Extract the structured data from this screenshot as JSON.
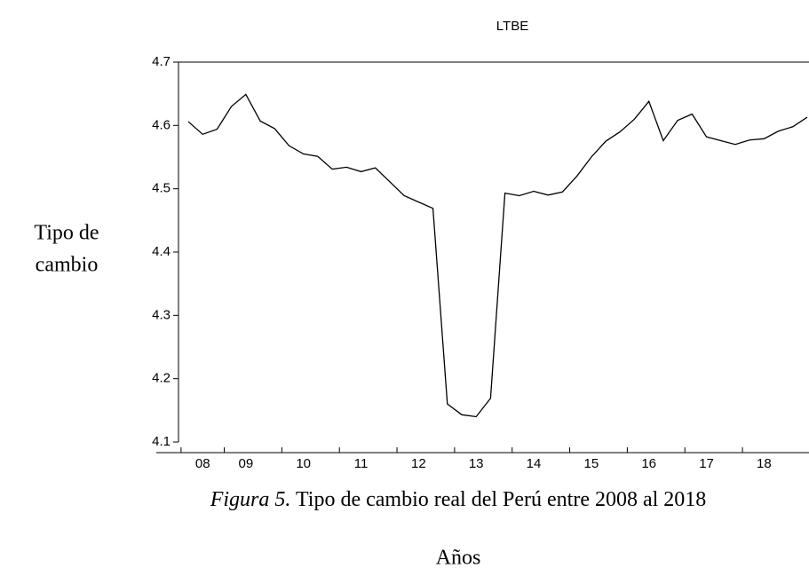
{
  "chart_data": {
    "type": "line",
    "title": "LTBE",
    "y_label": [
      "Tipo de",
      "cambio"
    ],
    "x_label": "Años",
    "caption_label": "Figura 5.",
    "caption_text": "Tipo de cambio real del Perú entre 2008 al 2018",
    "categories": [
      null,
      "08",
      null,
      null,
      "09",
      null,
      null,
      null,
      "10",
      null,
      null,
      null,
      "11",
      null,
      null,
      null,
      "12",
      null,
      null,
      null,
      "13",
      null,
      null,
      null,
      "14",
      null,
      null,
      null,
      "15",
      null,
      null,
      null,
      "16",
      null,
      null,
      null,
      "17",
      null,
      null,
      null,
      "18",
      null,
      null,
      null
    ],
    "series": [
      {
        "name": "LTBE",
        "color": "#000000",
        "values": [
          4.606,
          4.586,
          4.594,
          4.63,
          4.649,
          4.607,
          4.595,
          4.568,
          4.555,
          4.551,
          4.531,
          4.534,
          4.527,
          4.533,
          4.511,
          4.489,
          4.479,
          4.469,
          4.16,
          4.143,
          4.14,
          4.169,
          4.493,
          4.489,
          4.496,
          4.49,
          4.495,
          4.52,
          4.55,
          4.575,
          4.59,
          4.61,
          4.638,
          4.576,
          4.608,
          4.618,
          4.582,
          4.576,
          4.57,
          4.577,
          4.579,
          4.591,
          4.598,
          4.613
        ]
      }
    ],
    "ylim": [
      4.1,
      4.7
    ],
    "yticks": [
      4.1,
      4.2,
      4.3,
      4.4,
      4.5,
      4.6,
      4.7
    ],
    "grid": false
  }
}
